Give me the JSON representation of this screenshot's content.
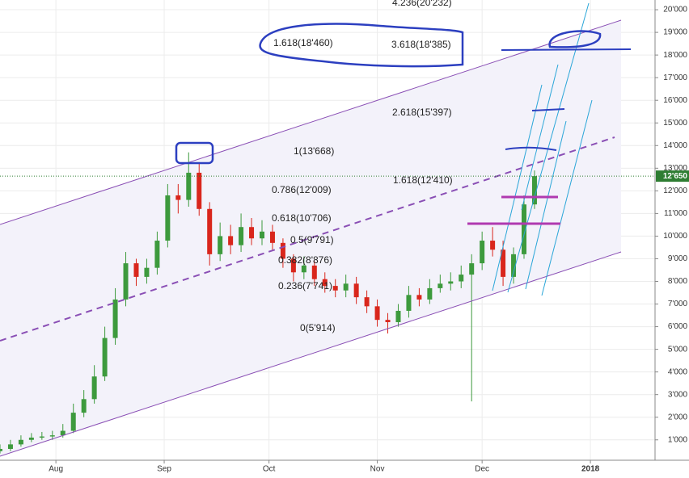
{
  "chart_data": {
    "type": "candlestick",
    "x": [
      0,
      3,
      6,
      9,
      12,
      15,
      18,
      21,
      24,
      27,
      30,
      33,
      36,
      39,
      42,
      45,
      48,
      51,
      54,
      57,
      60,
      63,
      66,
      69,
      72,
      75,
      78,
      81,
      84,
      87,
      90,
      93,
      96,
      99,
      102,
      105,
      108,
      111,
      114,
      117,
      120,
      123,
      126,
      129,
      132,
      135,
      138,
      141,
      144,
      147,
      150,
      153
    ],
    "open": [
      500,
      600,
      800,
      1000,
      1100,
      1150,
      1200,
      1400,
      2200,
      2800,
      3800,
      5500,
      7200,
      8800,
      8200,
      8600,
      9800,
      11800,
      11600,
      12800,
      11200,
      9200,
      10000,
      9600,
      10400,
      9900,
      10200,
      9700,
      9000,
      8400,
      8700,
      8100,
      7800,
      7600,
      7900,
      7300,
      6900,
      6300,
      6200,
      6700,
      7400,
      7200,
      7700,
      7900,
      8000,
      8300,
      8800,
      9800,
      9400,
      8200,
      9200,
      11400
    ],
    "high": [
      800,
      1000,
      1200,
      1300,
      1350,
      1400,
      1700,
      2600,
      3200,
      4300,
      6000,
      7700,
      9300,
      9000,
      9000,
      10200,
      12300,
      12300,
      13700,
      13200,
      11500,
      10600,
      10500,
      11000,
      10800,
      10700,
      10500,
      9900,
      9200,
      9100,
      8900,
      8400,
      8100,
      8300,
      8200,
      7600,
      7200,
      6600,
      7000,
      7800,
      7700,
      8100,
      8300,
      8400,
      8700,
      9200,
      10200,
      10400,
      9800,
      9500,
      11800,
      12900
    ],
    "low": [
      400,
      500,
      700,
      900,
      1000,
      1000,
      1100,
      1300,
      2000,
      2600,
      3600,
      5200,
      6900,
      7800,
      7900,
      8300,
      9500,
      11000,
      11300,
      10900,
      8700,
      8900,
      9200,
      9300,
      9600,
      9600,
      9400,
      8600,
      8000,
      8100,
      7800,
      7500,
      7300,
      7300,
      7000,
      6600,
      6000,
      5700,
      6000,
      6400,
      6900,
      7000,
      7500,
      7600,
      7700,
      2700,
      8500,
      9100,
      7800,
      7900,
      9000,
      11200
    ],
    "close": [
      600,
      800,
      1000,
      1100,
      1150,
      1200,
      1400,
      2200,
      2800,
      3800,
      5500,
      7200,
      8800,
      8200,
      8600,
      9800,
      11800,
      11600,
      12800,
      11200,
      9200,
      10000,
      9600,
      10400,
      9900,
      10200,
      9700,
      9000,
      8400,
      8700,
      8100,
      7800,
      7600,
      7900,
      7300,
      6900,
      6300,
      6200,
      6700,
      7400,
      7200,
      7700,
      7900,
      8000,
      8300,
      8800,
      9800,
      9400,
      8200,
      9200,
      11400,
      12650
    ],
    "up_color": "#3d9a3d",
    "down_color": "#d9261c",
    "xlim": [
      0,
      187.5
    ],
    "xticks": [
      {
        "value": 16,
        "label": "Aug"
      },
      {
        "value": 47,
        "label": "Sep"
      },
      {
        "value": 77,
        "label": "Oct"
      },
      {
        "value": 108,
        "label": "Nov"
      },
      {
        "value": 138,
        "label": "Dec"
      },
      {
        "value": 169,
        "label": "2018"
      }
    ],
    "ylim": [
      100,
      20430
    ],
    "yticks": [
      {
        "value": 1000,
        "label": "1'000"
      },
      {
        "value": 2000,
        "label": "2'000"
      },
      {
        "value": 3000,
        "label": "3'000"
      },
      {
        "value": 4000,
        "label": "4'000"
      },
      {
        "value": 5000,
        "label": "5'000"
      },
      {
        "value": 6000,
        "label": "6'000"
      },
      {
        "value": 7000,
        "label": "7'000"
      },
      {
        "value": 8000,
        "label": "8'000"
      },
      {
        "value": 9000,
        "label": "9'000"
      },
      {
        "value": 10000,
        "label": "10'000"
      },
      {
        "value": 11000,
        "label": "11'000"
      },
      {
        "value": 12000,
        "label": "12'000"
      },
      {
        "value": 13000,
        "label": "13'000"
      },
      {
        "value": 14000,
        "label": "14'000"
      },
      {
        "value": 15000,
        "label": "15'000"
      },
      {
        "value": 16000,
        "label": "16'000"
      },
      {
        "value": 17000,
        "label": "17'000"
      },
      {
        "value": 18000,
        "label": "18'000"
      },
      {
        "value": 19000,
        "label": "19'000"
      },
      {
        "value": 20000,
        "label": "20'000"
      }
    ],
    "grid": true,
    "last_price": {
      "value": 12650,
      "label": "12'650"
    },
    "annotations": [
      "4.236(20'232)",
      "1.618(18'460)",
      "3.618(18'385)",
      "2.618(15'397)",
      "1(13'668)",
      "1.618(12'410)",
      "0.786(12'009)",
      "0.618(10'706)",
      "0.5(9'791)",
      "0.382(8'876)",
      "0.236(7'741)",
      "0(5'914)"
    ]
  }
}
